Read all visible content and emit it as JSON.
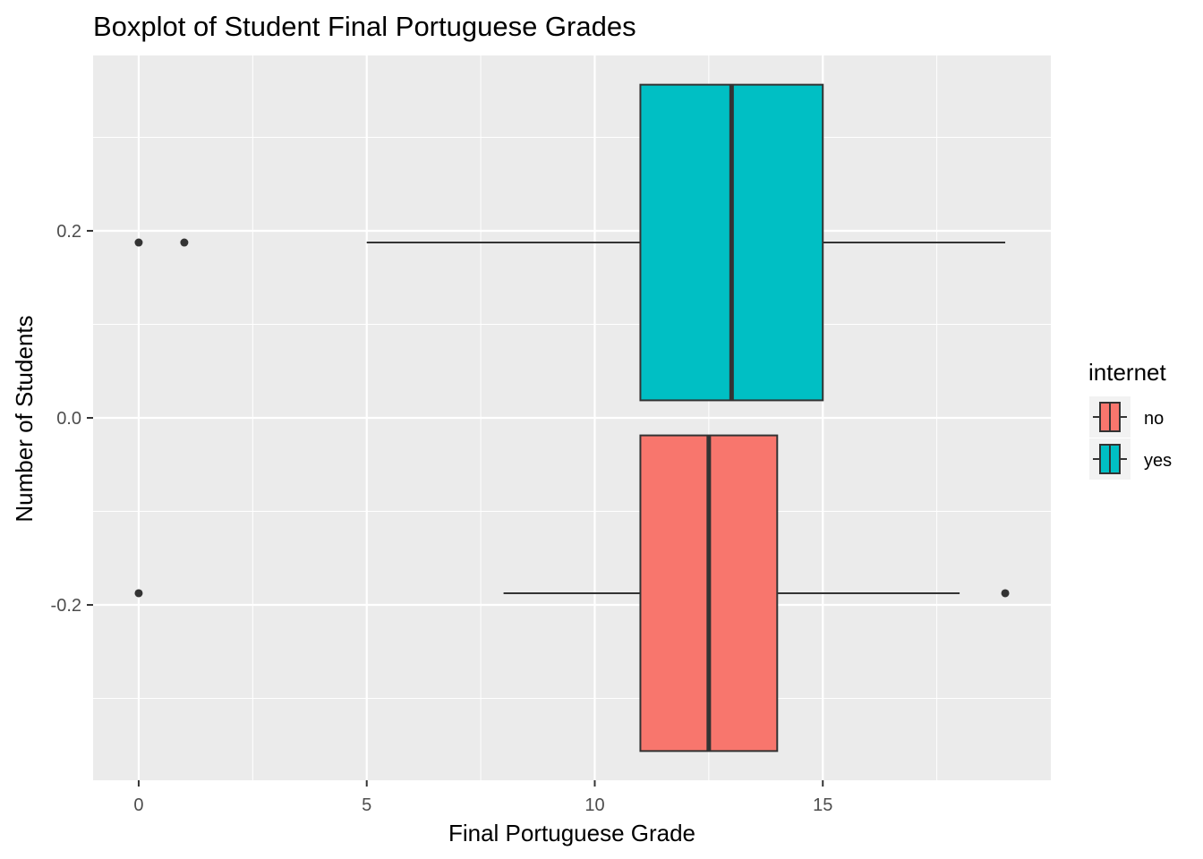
{
  "chart_data": {
    "type": "boxplot",
    "orientation": "horizontal",
    "title": "Boxplot of Student Final Portuguese Grades",
    "xlabel": "Final Portuguese Grade",
    "ylabel": "Number of Students",
    "xlim": [
      -1,
      20
    ],
    "ylim": [
      -0.3875,
      0.3875
    ],
    "x_ticks": [
      0,
      5,
      10,
      15
    ],
    "x_tick_labels": [
      "0",
      "5",
      "10",
      "15"
    ],
    "y_ticks": [
      -0.2,
      0.0,
      0.2
    ],
    "y_tick_labels": [
      "-0.2",
      "0.0",
      "0.2"
    ],
    "grid": true,
    "legend": {
      "title": "internet",
      "placement": "right",
      "entries": [
        "no",
        "yes"
      ]
    },
    "series": [
      {
        "name": "no",
        "color": "#F8766D",
        "y_center": -0.1875,
        "y_extent": [
          -0.35625,
          -0.01875
        ],
        "whisker_low": 8,
        "q1": 11,
        "median": 12.5,
        "q3": 14,
        "whisker_high": 18,
        "outliers": [
          0,
          19
        ]
      },
      {
        "name": "yes",
        "color": "#00BFC4",
        "y_center": 0.1875,
        "y_extent": [
          0.01875,
          0.35625
        ],
        "whisker_low": 5,
        "q1": 11,
        "median": 13,
        "q3": 15,
        "whisker_high": 19,
        "outliers": [
          0,
          1
        ]
      }
    ],
    "colors": {
      "panel_background": "#EBEBEB",
      "grid_line": "#FFFFFF",
      "box_outline": "#333333",
      "tick_text": "#4D4D4D"
    }
  }
}
